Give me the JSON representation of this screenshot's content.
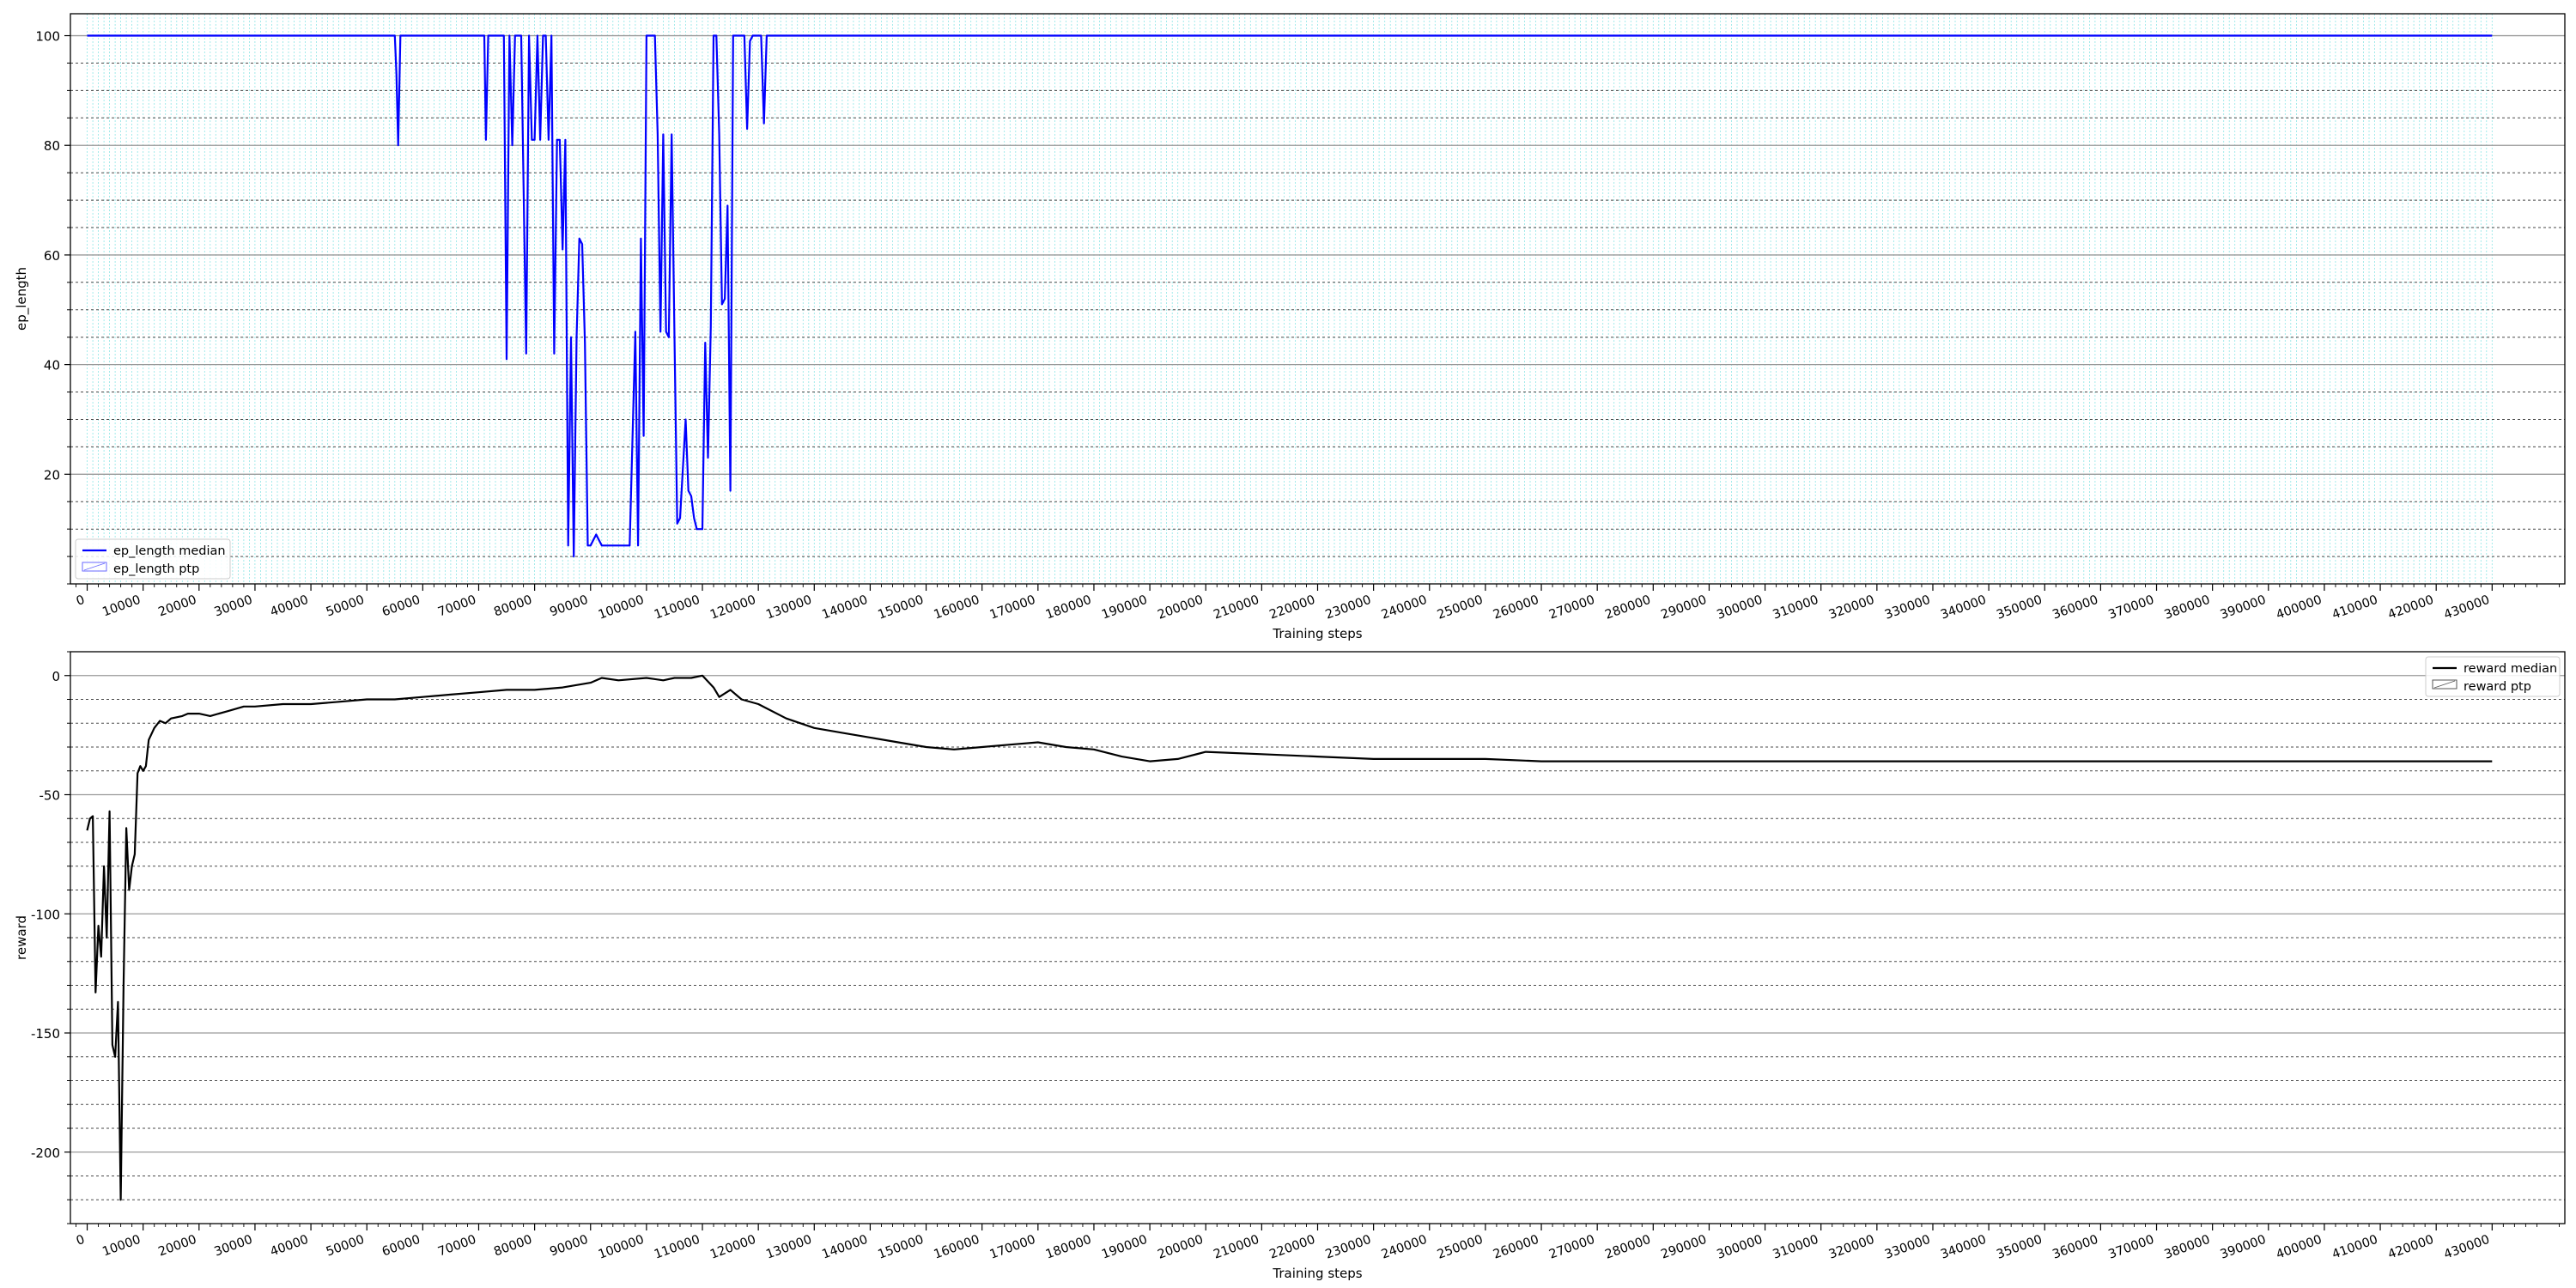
{
  "colors": {
    "ep_length_line": "#0000ff",
    "ep_length_band": "#6a6aff",
    "ep_length_vgrid": "#8ee6e6",
    "reward_line": "#000000",
    "reward_band": "#555555",
    "grid_major": "#9a9a9a",
    "grid_minor": "#4a4a4a"
  },
  "x_ticks": [
    0,
    10000,
    20000,
    30000,
    40000,
    50000,
    60000,
    70000,
    80000,
    90000,
    100000,
    110000,
    120000,
    130000,
    140000,
    150000,
    160000,
    170000,
    180000,
    190000,
    200000,
    210000,
    220000,
    230000,
    240000,
    250000,
    260000,
    270000,
    280000,
    290000,
    300000,
    310000,
    320000,
    330000,
    340000,
    350000,
    360000,
    370000,
    380000,
    390000,
    400000,
    410000,
    420000,
    430000
  ],
  "chart_data": [
    {
      "type": "line",
      "xlabel": "Training steps",
      "ylabel": "ep_length",
      "xlim": [
        -3000,
        443000
      ],
      "ylim": [
        0,
        104
      ],
      "yticks": [
        20,
        40,
        60,
        80,
        100
      ],
      "grid": true,
      "legend_position": "bottom-left",
      "legend": [
        "ep_length median",
        "ep_length ptp"
      ],
      "series": [
        {
          "name": "ep_length median",
          "x": [
            0,
            55000,
            55300,
            55600,
            56000,
            71000,
            71300,
            71700,
            74500,
            75000,
            75500,
            76000,
            76500,
            77000,
            77600,
            78500,
            79000,
            79500,
            80000,
            80500,
            81000,
            81500,
            82000,
            82500,
            83000,
            83500,
            84000,
            84500,
            85000,
            85500,
            86000,
            86500,
            87000,
            87500,
            88000,
            88500,
            89000,
            89500,
            90000,
            90500,
            91000,
            91500,
            92000,
            92500,
            93000,
            94000,
            95000,
            96000,
            97000,
            98000,
            98500,
            99000,
            99500,
            100000,
            100500,
            101000,
            101500,
            102000,
            102500,
            103000,
            103500,
            104000,
            104500,
            105000,
            105500,
            106000,
            107000,
            107500,
            108000,
            108500,
            109000,
            109500,
            110000,
            110500,
            111000,
            111500,
            112000,
            112500,
            113000,
            113500,
            114000,
            114500,
            115000,
            115500,
            116000,
            116500,
            117000,
            117500,
            118000,
            118500,
            119000,
            119500,
            120000,
            120500,
            121000,
            121500,
            122000,
            123000,
            124000,
            430000
          ],
          "y": [
            100,
            100,
            93,
            80,
            100,
            100,
            81,
            100,
            100,
            41,
            100,
            80,
            100,
            100,
            100,
            42,
            100,
            81,
            81,
            100,
            81,
            100,
            100,
            81,
            100,
            42,
            81,
            81,
            61,
            81,
            7,
            45,
            5,
            45,
            63,
            62,
            44,
            7,
            7,
            8,
            9,
            8,
            7,
            7,
            7,
            7,
            7,
            7,
            7,
            46,
            7,
            63,
            27,
            100,
            100,
            100,
            100,
            82,
            46,
            82,
            46,
            45,
            82,
            45,
            11,
            12,
            30,
            17,
            16,
            12,
            10,
            10,
            10,
            44,
            23,
            47,
            100,
            100,
            82,
            51,
            52,
            69,
            17,
            100,
            100,
            100,
            100,
            100,
            83,
            99,
            100,
            100,
            100,
            100,
            84,
            100,
            100,
            100,
            100,
            100
          ]
        },
        {
          "name": "ep_length ptp",
          "x": [],
          "y": []
        }
      ]
    },
    {
      "type": "line",
      "xlabel": "Training steps",
      "ylabel": "reward",
      "xlim": [
        -3000,
        443000
      ],
      "ylim": [
        -230,
        10
      ],
      "yticks": [
        0,
        -50,
        -100,
        -150,
        -200
      ],
      "grid": true,
      "legend_position": "top-right",
      "legend": [
        "reward median",
        "reward ptp"
      ],
      "series": [
        {
          "name": "reward median",
          "x": [
            0,
            500,
            1000,
            1500,
            2000,
            2500,
            3000,
            3500,
            4000,
            4500,
            5000,
            5500,
            6000,
            6500,
            7000,
            7500,
            8000,
            8500,
            9000,
            9500,
            10000,
            10500,
            11000,
            12000,
            13000,
            14000,
            15000,
            17000,
            18000,
            20000,
            22000,
            25000,
            28000,
            30000,
            35000,
            40000,
            45000,
            50000,
            55000,
            60000,
            65000,
            70000,
            75000,
            80000,
            85000,
            90000,
            92000,
            95000,
            100000,
            103000,
            105000,
            108000,
            110000,
            112000,
            113000,
            115000,
            117000,
            120000,
            125000,
            130000,
            135000,
            140000,
            145000,
            150000,
            155000,
            160000,
            165000,
            170000,
            175000,
            180000,
            185000,
            190000,
            195000,
            200000,
            210000,
            220000,
            230000,
            240000,
            250000,
            260000,
            270000,
            280000,
            290000,
            300000,
            310000,
            320000,
            330000,
            340000,
            350000,
            360000,
            370000,
            380000,
            390000,
            400000,
            410000,
            420000,
            430000
          ],
          "y": [
            -65,
            -60,
            -59,
            -133,
            -105,
            -118,
            -80,
            -110,
            -57,
            -155,
            -160,
            -137,
            -220,
            -130,
            -64,
            -90,
            -80,
            -75,
            -41,
            -38,
            -40,
            -38,
            -27,
            -22,
            -19,
            -20,
            -18,
            -17,
            -16,
            -16,
            -17,
            -15,
            -13,
            -13,
            -12,
            -12,
            -11,
            -10,
            -10,
            -9,
            -8,
            -7,
            -6,
            -6,
            -5,
            -3,
            -1,
            -2,
            -1,
            -2,
            -1,
            -1,
            0,
            -5,
            -9,
            -6,
            -10,
            -12,
            -18,
            -22,
            -24,
            -26,
            -28,
            -30,
            -31,
            -30,
            -29,
            -28,
            -30,
            -31,
            -34,
            -36,
            -35,
            -32,
            -33,
            -34,
            -35,
            -35,
            -35,
            -36,
            -36,
            -36,
            -36,
            -36,
            -36,
            -36,
            -36,
            -36,
            -36,
            -36,
            -36,
            -36,
            -36,
            -36,
            -36,
            -36,
            -36
          ]
        },
        {
          "name": "reward ptp",
          "x": [],
          "y": []
        }
      ]
    }
  ]
}
